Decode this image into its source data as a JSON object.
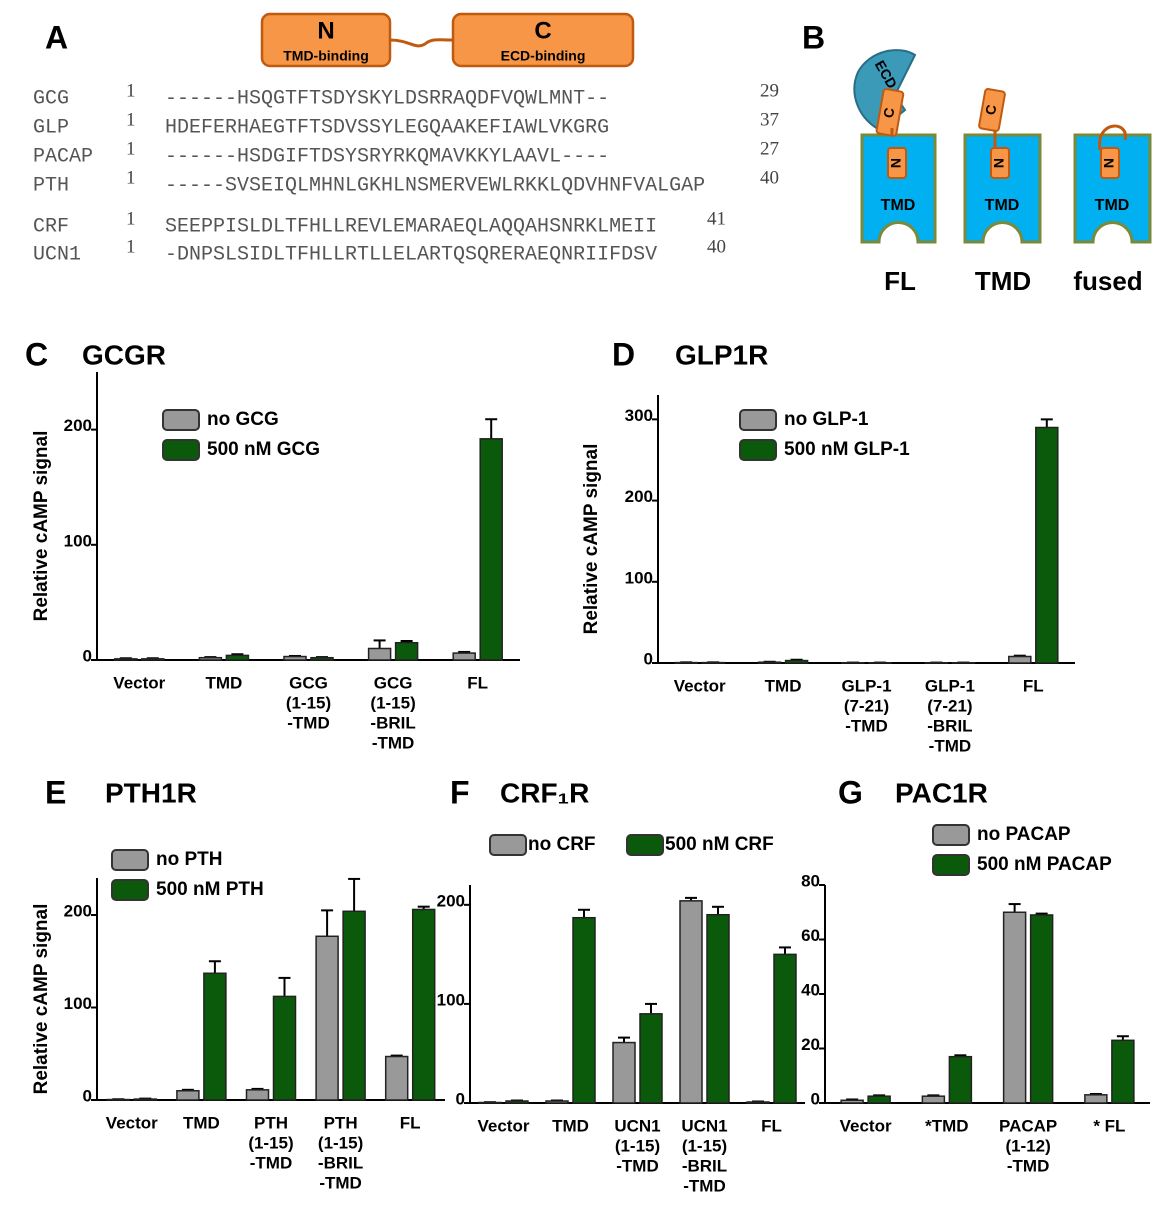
{
  "panel_a": {
    "letter": "A",
    "domains": [
      {
        "label": "N",
        "sublabel": "TMD-binding"
      },
      {
        "label": "C",
        "sublabel": "ECD-binding"
      }
    ],
    "alignment": [
      {
        "name": "GCG",
        "start": 1,
        "sequence": "------HSQGTFTSDYSKYLDSRRAQDFVQWLMNT--",
        "end": 29
      },
      {
        "name": "GLP",
        "start": 1,
        "sequence": "HDEFERHAEGTFTSDVSSYLEGQAAKEFIAWLVKGRG",
        "end": 37
      },
      {
        "name": "PACAP",
        "start": 1,
        "sequence": "------HSDGIFTDSYSRYRKQMAVKKYLAAVL----",
        "end": 27
      },
      {
        "name": "PTH",
        "start": 1,
        "sequence": "-----SVSEIQLMHNLGKHLNSMERVEWLRKKLQDVHNFVALGAP",
        "end": 40
      },
      {
        "name": "CRF",
        "start": 1,
        "sequence": "SEEPPISLDLTFHLLREVLEMARAEQLAQQAHSNRKLMEII",
        "end": 41
      },
      {
        "name": "UCN1",
        "start": 1,
        "sequence": "-DNPSLSIDLTFHLLRTLLELARTQSQRERAEQNRIIFDSV",
        "end": 40
      }
    ]
  },
  "panel_b": {
    "letter": "B",
    "ecd": "ECD",
    "c": "C",
    "n": "N",
    "tmd": "TMD",
    "constructs": [
      "FL",
      "TMD",
      "fused"
    ]
  },
  "chart_data": [
    {
      "type": "bar",
      "letter": "C",
      "title": "GCGR",
      "ylabel": "Relative cAMP signal",
      "categories": [
        [
          "Vector"
        ],
        [
          "TMD"
        ],
        [
          "GCG",
          "(1-15)",
          "-TMD"
        ],
        [
          "GCG",
          "(1-15)",
          "-BRIL",
          "-TMD"
        ],
        [
          "FL"
        ]
      ],
      "series": [
        {
          "name": "no GCG",
          "color": "#999999",
          "values": [
            1,
            2,
            3,
            10,
            6
          ],
          "error": [
            0.5,
            0.5,
            0.5,
            7,
            1
          ]
        },
        {
          "name": "500 nM GCG",
          "color": "#0b5a0b",
          "values": [
            1,
            4,
            2,
            15,
            192
          ],
          "error": [
            0.5,
            1,
            0.5,
            1.5,
            17
          ]
        }
      ],
      "ylim": [
        0,
        250
      ],
      "yticks": [
        0,
        100,
        200
      ],
      "legend": "upper left"
    },
    {
      "type": "bar",
      "letter": "D",
      "title": "GLP1R",
      "ylabel": "Relative cAMP signal",
      "categories": [
        [
          "Vector"
        ],
        [
          "TMD"
        ],
        [
          "GLP-1",
          "(7-21)",
          "-TMD"
        ],
        [
          "GLP-1",
          "(7-21)",
          "-BRIL",
          "-TMD"
        ],
        [
          "FL"
        ]
      ],
      "series": [
        {
          "name": "no GLP-1",
          "color": "#999999",
          "values": [
            0.5,
            1,
            0.3,
            0.3,
            8
          ],
          "error": [
            0.3,
            0.5,
            0.2,
            0.2,
            1
          ]
        },
        {
          "name": "500 nM GLP-1",
          "color": "#0b5a0b",
          "values": [
            0.5,
            3,
            0.3,
            0.3,
            290
          ],
          "error": [
            0.3,
            1,
            0.2,
            0.2,
            10
          ]
        }
      ],
      "ylim": [
        0,
        330
      ],
      "yticks": [
        0,
        100,
        200,
        300
      ],
      "legend": "upper left"
    },
    {
      "type": "bar",
      "letter": "E",
      "title": "PTH1R",
      "ylabel": "Relative cAMP signal",
      "categories": [
        [
          "Vector"
        ],
        [
          "TMD"
        ],
        [
          "PTH",
          "(1-15)",
          "-TMD"
        ],
        [
          "PTH",
          "(1-15)",
          "-BRIL",
          "-TMD"
        ],
        [
          "FL"
        ]
      ],
      "series": [
        {
          "name": "no PTH",
          "color": "#999999",
          "values": [
            0.5,
            10,
            11,
            177,
            47
          ],
          "error": [
            0.3,
            1,
            1,
            28,
            1
          ]
        },
        {
          "name": "500 nM PTH",
          "color": "#0b5a0b",
          "values": [
            1,
            137,
            112,
            204,
            206
          ],
          "error": [
            0.5,
            13,
            20,
            35,
            3
          ]
        }
      ],
      "ylim": [
        0,
        240
      ],
      "yticks": [
        0,
        100,
        200
      ],
      "legend": "upper left"
    },
    {
      "type": "bar",
      "letter": "F",
      "title": "CRF₁R",
      "categories": [
        [
          "Vector"
        ],
        [
          "TMD"
        ],
        [
          "UCN1",
          "(1-15)",
          "-TMD"
        ],
        [
          "UCN1",
          "(1-15)",
          "-BRIL",
          "-TMD"
        ],
        [
          "FL"
        ]
      ],
      "series": [
        {
          "name": "no CRF",
          "color": "#999999",
          "values": [
            0.5,
            2,
            61,
            204,
            1
          ],
          "error": [
            0.3,
            0.5,
            5,
            3,
            0.5
          ]
        },
        {
          "name": "500 nM CRF",
          "color": "#0b5a0b",
          "values": [
            2,
            187,
            90,
            190,
            150
          ],
          "error": [
            0.5,
            8,
            10,
            8,
            7
          ]
        }
      ],
      "ylim": [
        0,
        220
      ],
      "yticks": [
        0,
        100,
        200
      ],
      "legend": "top"
    },
    {
      "type": "bar",
      "letter": "G",
      "title": "PAC1R",
      "categories": [
        [
          "Vector"
        ],
        [
          "*TMD"
        ],
        [
          "PACAP",
          "(1-12)",
          "-TMD"
        ],
        [
          "* FL"
        ]
      ],
      "series": [
        {
          "name": "no PACAP",
          "color": "#999999",
          "values": [
            1,
            2.5,
            70,
            3
          ],
          "error": [
            0.3,
            0.3,
            3,
            0.3
          ]
        },
        {
          "name": "500 nM PACAP",
          "color": "#0b5a0b",
          "values": [
            2.5,
            17,
            69,
            23
          ],
          "error": [
            0.3,
            0.5,
            0.5,
            1.5
          ]
        }
      ],
      "ylim": [
        0,
        80
      ],
      "yticks": [
        0,
        20,
        40,
        60,
        80
      ],
      "legend": "upper left"
    }
  ]
}
